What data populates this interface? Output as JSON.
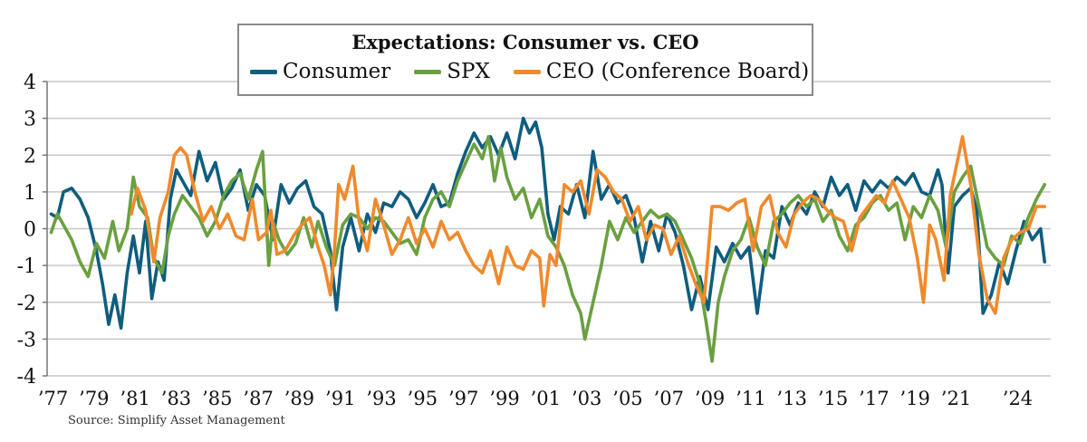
{
  "colors": {
    "consumer": "#0f5d7e",
    "spx": "#6aa040",
    "ceo": "#f08a2c",
    "grid": "#c8c8c8",
    "axis": "#777777"
  },
  "legend": {
    "title": "Expectations: Consumer vs. CEO",
    "consumer": "Consumer",
    "spx": "SPX",
    "ceo": "CEO (Conference Board)"
  },
  "source": "Source: Simplify Asset Management",
  "chart_data": {
    "type": "line",
    "title": "Expectations: Consumer vs. CEO",
    "xlabel": "",
    "ylabel": "",
    "xlim": [
      1976.8,
      2025.7
    ],
    "ylim": [
      -4,
      4
    ],
    "yticks": [
      4,
      3,
      2,
      1,
      0,
      -1,
      -2,
      -3,
      -4
    ],
    "yticklabels": [
      "4",
      "3",
      "2",
      "1",
      "0",
      "-1",
      "-2",
      "-3",
      "-4"
    ],
    "xticks": [
      1977,
      1979,
      1981,
      1983,
      1985,
      1987,
      1989,
      1991,
      1993,
      1995,
      1997,
      1999,
      2001,
      2003,
      2005,
      2007,
      2009,
      2011,
      2013,
      2015,
      2017,
      2019,
      2021,
      2024
    ],
    "xticklabels": [
      "’77",
      "’79",
      "’81",
      "’83",
      "’85",
      "’87",
      "’89",
      "’91",
      "’93",
      "’95",
      "’97",
      "’99",
      "’01",
      "’03",
      "’05",
      "’07",
      "’09",
      "’11",
      "’13",
      "’15",
      "’17",
      "’19",
      "’21",
      "’24"
    ],
    "grid": true,
    "legend_position": "top-center",
    "series": [
      {
        "name": "Consumer",
        "color_key": "consumer",
        "x": [
          1977.0,
          1977.3,
          1977.6,
          1978.0,
          1978.4,
          1978.8,
          1979.2,
          1979.5,
          1979.8,
          1980.1,
          1980.4,
          1980.7,
          1981.0,
          1981.3,
          1981.6,
          1981.9,
          1982.2,
          1982.5,
          1982.8,
          1983.1,
          1983.4,
          1983.8,
          1984.2,
          1984.6,
          1985.0,
          1985.4,
          1985.8,
          1986.2,
          1986.6,
          1987.0,
          1987.4,
          1987.8,
          1988.2,
          1988.6,
          1989.0,
          1989.4,
          1989.8,
          1990.2,
          1990.6,
          1990.9,
          1991.2,
          1991.6,
          1992.0,
          1992.4,
          1992.8,
          1993.2,
          1993.6,
          1994.0,
          1994.4,
          1994.8,
          1995.2,
          1995.6,
          1996.0,
          1996.4,
          1996.8,
          1997.2,
          1997.6,
          1998.0,
          1998.4,
          1998.8,
          1999.2,
          1999.6,
          2000.0,
          2000.3,
          2000.6,
          2000.9,
          2001.2,
          2001.5,
          2001.8,
          2002.2,
          2002.6,
          2003.0,
          2003.4,
          2003.8,
          2004.2,
          2004.6,
          2005.0,
          2005.4,
          2005.8,
          2006.2,
          2006.6,
          2007.0,
          2007.4,
          2007.8,
          2008.2,
          2008.6,
          2009.0,
          2009.4,
          2009.8,
          2010.2,
          2010.6,
          2011.0,
          2011.4,
          2011.8,
          2012.2,
          2012.6,
          2013.0,
          2013.4,
          2013.8,
          2014.2,
          2014.6,
          2015.0,
          2015.4,
          2015.8,
          2016.2,
          2016.6,
          2017.0,
          2017.4,
          2017.8,
          2018.2,
          2018.6,
          2019.0,
          2019.4,
          2019.8,
          2020.2,
          2020.4,
          2020.7,
          2021.0,
          2021.4,
          2021.8,
          2022.1,
          2022.4,
          2022.8,
          2023.2,
          2023.6,
          2024.0,
          2024.4,
          2024.8,
          2025.2,
          2025.4
        ],
        "y": [
          0.4,
          0.3,
          1.0,
          1.1,
          0.8,
          0.3,
          -0.6,
          -1.5,
          -2.6,
          -1.8,
          -2.7,
          -1.2,
          -0.2,
          -1.2,
          0.2,
          -1.9,
          -0.9,
          -1.4,
          0.8,
          1.6,
          1.3,
          0.9,
          2.1,
          1.3,
          1.8,
          0.8,
          1.1,
          1.6,
          0.5,
          1.2,
          0.9,
          -0.3,
          1.2,
          0.7,
          1.1,
          1.3,
          0.6,
          0.4,
          -0.6,
          -2.2,
          -0.5,
          0.3,
          -0.6,
          0.4,
          -0.1,
          0.7,
          0.6,
          1.0,
          0.8,
          0.3,
          0.7,
          1.2,
          0.6,
          0.7,
          1.5,
          2.1,
          2.6,
          2.2,
          2.5,
          2.0,
          2.6,
          1.9,
          3.0,
          2.6,
          2.9,
          2.2,
          0.4,
          -0.3,
          0.6,
          0.4,
          1.2,
          0.3,
          2.1,
          0.8,
          1.2,
          0.7,
          0.9,
          0.3,
          -0.9,
          0.2,
          -0.6,
          0.4,
          -0.1,
          -1.0,
          -2.2,
          -1.3,
          -2.2,
          -0.5,
          -0.9,
          -0.4,
          -0.8,
          -0.5,
          -2.3,
          -0.6,
          -0.8,
          0.6,
          0.1,
          0.7,
          0.4,
          1.0,
          0.6,
          1.4,
          0.9,
          1.2,
          0.5,
          1.3,
          1.0,
          1.3,
          1.1,
          1.4,
          1.2,
          1.5,
          1.0,
          0.9,
          1.6,
          1.2,
          -1.2,
          0.6,
          0.9,
          1.1,
          0.5,
          -2.3,
          -1.8,
          -0.9,
          -1.5,
          -0.6,
          0.2,
          -0.3,
          0.0,
          -0.9
        ]
      },
      {
        "name": "SPX",
        "color_key": "spx",
        "x": [
          1977.0,
          1977.3,
          1977.6,
          1978.0,
          1978.4,
          1978.8,
          1979.2,
          1979.6,
          1980.0,
          1980.3,
          1980.7,
          1981.0,
          1981.3,
          1981.7,
          1982.0,
          1982.4,
          1982.7,
          1983.0,
          1983.4,
          1983.8,
          1984.2,
          1984.6,
          1985.0,
          1985.4,
          1985.8,
          1986.2,
          1986.6,
          1987.0,
          1987.3,
          1987.6,
          1987.8,
          1988.1,
          1988.5,
          1988.9,
          1989.3,
          1989.7,
          1990.0,
          1990.4,
          1990.8,
          1991.2,
          1991.6,
          1992.0,
          1992.4,
          1992.8,
          1993.2,
          1993.6,
          1994.0,
          1994.4,
          1994.8,
          1995.2,
          1995.6,
          1996.0,
          1996.4,
          1996.8,
          1997.2,
          1997.6,
          1998.0,
          1998.3,
          1998.6,
          1998.9,
          1999.2,
          1999.6,
          2000.0,
          2000.4,
          2000.8,
          2001.2,
          2001.6,
          2002.0,
          2002.4,
          2002.8,
          2003.0,
          2003.4,
          2003.8,
          2004.2,
          2004.6,
          2005.0,
          2005.4,
          2005.8,
          2006.2,
          2006.6,
          2007.0,
          2007.4,
          2007.8,
          2008.2,
          2008.6,
          2008.9,
          2009.2,
          2009.5,
          2009.8,
          2010.2,
          2010.6,
          2011.0,
          2011.4,
          2011.8,
          2012.2,
          2012.6,
          2013.0,
          2013.4,
          2013.8,
          2014.2,
          2014.6,
          2015.0,
          2015.4,
          2015.8,
          2016.2,
          2016.6,
          2017.0,
          2017.4,
          2017.8,
          2018.2,
          2018.6,
          2019.0,
          2019.4,
          2019.8,
          2020.2,
          2020.6,
          2021.0,
          2021.4,
          2021.8,
          2022.2,
          2022.6,
          2023.0,
          2023.4,
          2023.8,
          2024.2,
          2024.6,
          2025.0,
          2025.4
        ],
        "y": [
          -0.1,
          0.4,
          0.1,
          -0.3,
          -0.9,
          -1.3,
          -0.4,
          -0.8,
          0.2,
          -0.6,
          0.0,
          1.4,
          0.6,
          0.3,
          -0.8,
          -1.2,
          -0.2,
          0.4,
          0.9,
          0.6,
          0.3,
          -0.2,
          0.2,
          0.9,
          1.3,
          1.5,
          0.8,
          1.6,
          2.1,
          -1.0,
          0.2,
          -0.3,
          -0.7,
          -0.4,
          0.3,
          -0.5,
          0.2,
          -0.5,
          -1.0,
          0.1,
          0.4,
          0.3,
          0.0,
          0.3,
          0.2,
          -0.1,
          -0.4,
          -0.3,
          -0.7,
          0.3,
          0.8,
          1.0,
          0.6,
          1.3,
          1.8,
          2.3,
          1.9,
          2.5,
          1.3,
          2.2,
          1.4,
          0.8,
          1.1,
          0.3,
          0.8,
          -0.2,
          -0.5,
          -1.0,
          -1.8,
          -2.3,
          -3.0,
          -2.0,
          -1.0,
          0.2,
          -0.3,
          0.3,
          -0.1,
          0.2,
          0.5,
          0.3,
          0.4,
          0.2,
          -0.3,
          -0.8,
          -1.5,
          -2.5,
          -3.6,
          -2.0,
          -1.3,
          -0.6,
          -0.3,
          0.3,
          -0.5,
          -1.0,
          0.2,
          0.4,
          0.7,
          0.9,
          0.6,
          0.8,
          0.2,
          0.5,
          -0.2,
          -0.6,
          0.1,
          0.3,
          0.7,
          0.9,
          0.5,
          0.7,
          -0.3,
          0.6,
          0.3,
          0.9,
          0.5,
          -0.5,
          1.0,
          1.4,
          1.7,
          0.6,
          -0.5,
          -0.8,
          -1.0,
          -0.2,
          -0.4,
          0.3,
          0.8,
          1.2
        ]
      },
      {
        "name": "CEO (Conference Board)",
        "color_key": "ceo",
        "x": [
          1980.9,
          1981.2,
          1981.6,
          1982.0,
          1982.3,
          1982.7,
          1983.0,
          1983.3,
          1983.6,
          1984.0,
          1984.4,
          1984.8,
          1985.2,
          1985.6,
          1986.0,
          1986.4,
          1986.8,
          1987.1,
          1987.5,
          1987.7,
          1988.0,
          1988.4,
          1988.8,
          1989.2,
          1989.6,
          1990.0,
          1990.3,
          1990.6,
          1990.8,
          1991.0,
          1991.3,
          1991.7,
          1992.0,
          1992.4,
          1992.8,
          1993.2,
          1993.6,
          1994.0,
          1994.4,
          1994.8,
          1995.2,
          1995.6,
          1996.0,
          1996.4,
          1996.8,
          1997.2,
          1997.6,
          1998.0,
          1998.4,
          1998.8,
          1999.2,
          1999.6,
          2000.0,
          2000.4,
          2000.8,
          2001.0,
          2001.3,
          2001.6,
          2002.0,
          2002.4,
          2002.8,
          2003.2,
          2003.6,
          2004.0,
          2004.4,
          2004.8,
          2005.2,
          2005.6,
          2006.0,
          2006.4,
          2006.8,
          2007.2,
          2007.6,
          2008.0,
          2008.4,
          2008.8,
          2009.2,
          2009.6,
          2010.0,
          2010.4,
          2010.8,
          2011.2,
          2011.6,
          2012.0,
          2012.4,
          2012.8,
          2013.2,
          2013.6,
          2014.0,
          2014.4,
          2014.8,
          2015.2,
          2015.6,
          2016.0,
          2016.4,
          2016.8,
          2017.2,
          2017.6,
          2018.0,
          2018.4,
          2018.8,
          2019.2,
          2019.5,
          2019.8,
          2020.1,
          2020.5,
          2020.8,
          2021.1,
          2021.4,
          2021.8,
          2022.2,
          2022.6,
          2023.0,
          2023.4,
          2023.8,
          2024.2,
          2024.6,
          2025.0,
          2025.4
        ],
        "y": [
          0.4,
          1.1,
          0.5,
          -0.9,
          0.3,
          1.0,
          2.0,
          2.2,
          2.0,
          1.0,
          0.2,
          0.6,
          0.0,
          0.4,
          -0.2,
          -0.3,
          0.8,
          -0.3,
          -0.1,
          0.5,
          -0.7,
          -0.6,
          -0.2,
          0.1,
          0.3,
          -0.5,
          -1.0,
          -1.8,
          -0.6,
          1.2,
          0.8,
          1.7,
          0.2,
          -0.6,
          0.8,
          0.1,
          -0.7,
          -0.3,
          0.3,
          -0.4,
          0.0,
          -0.5,
          0.2,
          -0.3,
          -0.1,
          -0.6,
          -1.0,
          -1.2,
          -0.6,
          -1.5,
          -0.5,
          -1.0,
          -1.1,
          -0.6,
          -0.8,
          -2.1,
          -0.7,
          -1.0,
          1.2,
          1.0,
          1.3,
          0.4,
          1.6,
          1.4,
          1.0,
          0.8,
          0.2,
          0.6,
          -0.3,
          0.1,
          0.0,
          -0.7,
          -0.2,
          -0.9,
          -1.5,
          -2.0,
          0.6,
          0.6,
          0.5,
          0.7,
          0.8,
          -0.6,
          0.6,
          0.9,
          -0.1,
          -0.5,
          0.4,
          0.7,
          0.9,
          0.8,
          0.5,
          0.3,
          0.2,
          -0.6,
          0.3,
          0.6,
          0.9,
          0.7,
          1.3,
          0.8,
          0.3,
          -0.8,
          -2.0,
          0.1,
          -0.3,
          -1.4,
          0.9,
          1.7,
          2.5,
          1.2,
          -0.7,
          -1.9,
          -2.3,
          -0.8,
          -0.3,
          -0.1,
          0.0,
          0.6,
          0.6
        ]
      }
    ]
  }
}
